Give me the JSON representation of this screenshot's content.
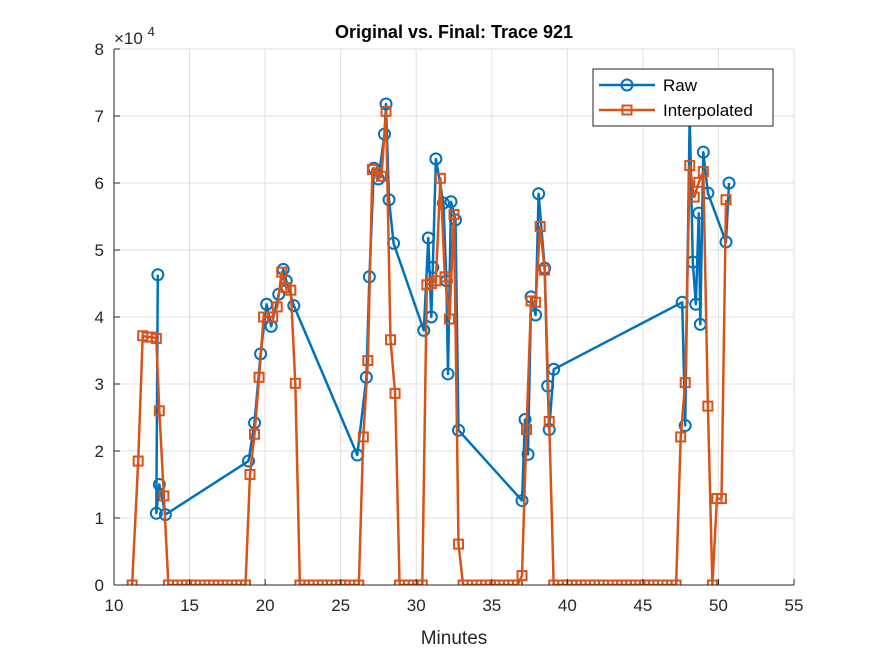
{
  "chart_data": {
    "type": "line",
    "title": "Original vs. Final: Trace 921",
    "xlabel": "Minutes",
    "ylabel": "",
    "xlim": [
      10,
      55
    ],
    "ylim": [
      0,
      80000
    ],
    "xticks": [
      "10",
      "15",
      "20",
      "25",
      "30",
      "35",
      "40",
      "45",
      "50",
      "55"
    ],
    "yticks": [
      "0",
      "1",
      "2",
      "3",
      "4",
      "5",
      "6",
      "7",
      "8"
    ],
    "y_exponent_label": "×10",
    "y_exponent_power": "4",
    "grid": true,
    "legend_position": "top-right",
    "series": [
      {
        "name": "Raw",
        "color": "#0072BD",
        "marker": "circle",
        "points": [
          [
            12.9,
            46300
          ],
          [
            12.8,
            10700
          ],
          [
            13.0,
            15000
          ],
          [
            13.4,
            10500
          ],
          [
            18.9,
            18500
          ],
          [
            19.3,
            24200
          ],
          [
            19.7,
            34500
          ],
          [
            20.1,
            41900
          ],
          [
            20.4,
            38600
          ],
          [
            20.9,
            43400
          ],
          [
            21.2,
            47100
          ],
          [
            21.4,
            45400
          ],
          [
            21.9,
            41700
          ],
          [
            26.1,
            19400
          ],
          [
            26.7,
            31000
          ],
          [
            26.9,
            46000
          ],
          [
            27.2,
            62200
          ],
          [
            27.5,
            60600
          ],
          [
            27.9,
            67300
          ],
          [
            28.0,
            71800
          ],
          [
            28.2,
            57500
          ],
          [
            28.5,
            51000
          ],
          [
            30.5,
            38000
          ],
          [
            30.8,
            51800
          ],
          [
            31.0,
            40000
          ],
          [
            31.1,
            47400
          ],
          [
            31.3,
            63600
          ],
          [
            31.8,
            57000
          ],
          [
            32.0,
            45400
          ],
          [
            32.1,
            31500
          ],
          [
            32.3,
            57200
          ],
          [
            32.6,
            54500
          ],
          [
            32.8,
            23100
          ],
          [
            37.0,
            12600
          ],
          [
            37.2,
            24700
          ],
          [
            37.4,
            19500
          ],
          [
            37.6,
            43000
          ],
          [
            37.9,
            40300
          ],
          [
            38.1,
            58400
          ],
          [
            38.5,
            47300
          ],
          [
            38.7,
            29700
          ],
          [
            38.8,
            23200
          ],
          [
            39.1,
            32200
          ],
          [
            47.6,
            42200
          ],
          [
            47.8,
            23800
          ],
          [
            48.1,
            70000
          ],
          [
            48.3,
            48200
          ],
          [
            48.5,
            41900
          ],
          [
            48.7,
            55500
          ],
          [
            48.8,
            38900
          ],
          [
            49.0,
            64600
          ],
          [
            49.3,
            58500
          ],
          [
            50.5,
            51200
          ],
          [
            50.7,
            60000
          ]
        ]
      },
      {
        "name": "Interpolated",
        "color": "#D95319",
        "marker": "square",
        "points": [
          [
            11.2,
            0
          ],
          [
            11.6,
            18500
          ],
          [
            11.9,
            37200
          ],
          [
            12.2,
            37000
          ],
          [
            12.5,
            37000
          ],
          [
            12.8,
            36800
          ],
          [
            13.0,
            26000
          ],
          [
            13.3,
            13300
          ],
          [
            13.6,
            0
          ],
          [
            13.9,
            0
          ],
          [
            14.2,
            0
          ],
          [
            14.5,
            0
          ],
          [
            14.8,
            0
          ],
          [
            15.1,
            0
          ],
          [
            15.4,
            0
          ],
          [
            15.7,
            0
          ],
          [
            16.0,
            0
          ],
          [
            16.3,
            0
          ],
          [
            16.6,
            0
          ],
          [
            16.9,
            0
          ],
          [
            17.2,
            0
          ],
          [
            17.5,
            0
          ],
          [
            17.8,
            0
          ],
          [
            18.1,
            0
          ],
          [
            18.4,
            0
          ],
          [
            18.7,
            0
          ],
          [
            19.0,
            16500
          ],
          [
            19.3,
            22500
          ],
          [
            19.6,
            31000
          ],
          [
            19.9,
            40000
          ],
          [
            20.2,
            40000
          ],
          [
            20.5,
            40000
          ],
          [
            20.8,
            41500
          ],
          [
            21.1,
            46700
          ],
          [
            21.4,
            44400
          ],
          [
            21.7,
            44000
          ],
          [
            22.0,
            30100
          ],
          [
            22.3,
            0
          ],
          [
            22.6,
            0
          ],
          [
            22.9,
            0
          ],
          [
            23.2,
            0
          ],
          [
            23.5,
            0
          ],
          [
            23.8,
            0
          ],
          [
            24.1,
            0
          ],
          [
            24.4,
            0
          ],
          [
            24.7,
            0
          ],
          [
            25.0,
            0
          ],
          [
            25.3,
            0
          ],
          [
            25.6,
            0
          ],
          [
            25.9,
            0
          ],
          [
            26.2,
            0
          ],
          [
            26.5,
            22100
          ],
          [
            26.8,
            33500
          ],
          [
            27.1,
            62000
          ],
          [
            27.4,
            61500
          ],
          [
            27.7,
            61000
          ],
          [
            28.0,
            70700
          ],
          [
            28.3,
            36600
          ],
          [
            28.6,
            28600
          ],
          [
            28.9,
            0
          ],
          [
            29.2,
            0
          ],
          [
            29.5,
            0
          ],
          [
            29.8,
            0
          ],
          [
            30.1,
            0
          ],
          [
            30.4,
            0
          ],
          [
            30.7,
            44800
          ],
          [
            31.0,
            45000
          ],
          [
            31.3,
            45400
          ],
          [
            31.6,
            60700
          ],
          [
            31.9,
            46000
          ],
          [
            32.2,
            39700
          ],
          [
            32.5,
            55300
          ],
          [
            32.8,
            6100
          ],
          [
            33.1,
            0
          ],
          [
            33.4,
            0
          ],
          [
            33.7,
            0
          ],
          [
            34.0,
            0
          ],
          [
            34.3,
            0
          ],
          [
            34.6,
            0
          ],
          [
            34.9,
            0
          ],
          [
            35.2,
            0
          ],
          [
            35.5,
            0
          ],
          [
            35.8,
            0
          ],
          [
            36.1,
            0
          ],
          [
            36.4,
            0
          ],
          [
            36.7,
            0
          ],
          [
            37.0,
            1400
          ],
          [
            37.3,
            23200
          ],
          [
            37.6,
            42400
          ],
          [
            37.9,
            42200
          ],
          [
            38.2,
            53500
          ],
          [
            38.5,
            47000
          ],
          [
            38.8,
            24400
          ],
          [
            39.1,
            0
          ],
          [
            39.4,
            0
          ],
          [
            39.7,
            0
          ],
          [
            40.0,
            0
          ],
          [
            40.3,
            0
          ],
          [
            40.6,
            0
          ],
          [
            40.9,
            0
          ],
          [
            41.2,
            0
          ],
          [
            41.5,
            0
          ],
          [
            41.8,
            0
          ],
          [
            42.1,
            0
          ],
          [
            42.4,
            0
          ],
          [
            42.7,
            0
          ],
          [
            43.0,
            0
          ],
          [
            43.3,
            0
          ],
          [
            43.6,
            0
          ],
          [
            43.9,
            0
          ],
          [
            44.2,
            0
          ],
          [
            44.5,
            0
          ],
          [
            44.8,
            0
          ],
          [
            45.1,
            0
          ],
          [
            45.4,
            0
          ],
          [
            45.7,
            0
          ],
          [
            46.0,
            0
          ],
          [
            46.3,
            0
          ],
          [
            46.6,
            0
          ],
          [
            46.9,
            0
          ],
          [
            47.2,
            0
          ],
          [
            47.5,
            22100
          ],
          [
            47.8,
            30200
          ],
          [
            48.1,
            62600
          ],
          [
            48.4,
            57900
          ],
          [
            48.7,
            60100
          ],
          [
            49.0,
            61700
          ],
          [
            49.3,
            26700
          ],
          [
            49.6,
            0
          ],
          [
            49.9,
            12900
          ],
          [
            50.2,
            12900
          ],
          [
            50.5,
            57500
          ]
        ]
      }
    ]
  }
}
